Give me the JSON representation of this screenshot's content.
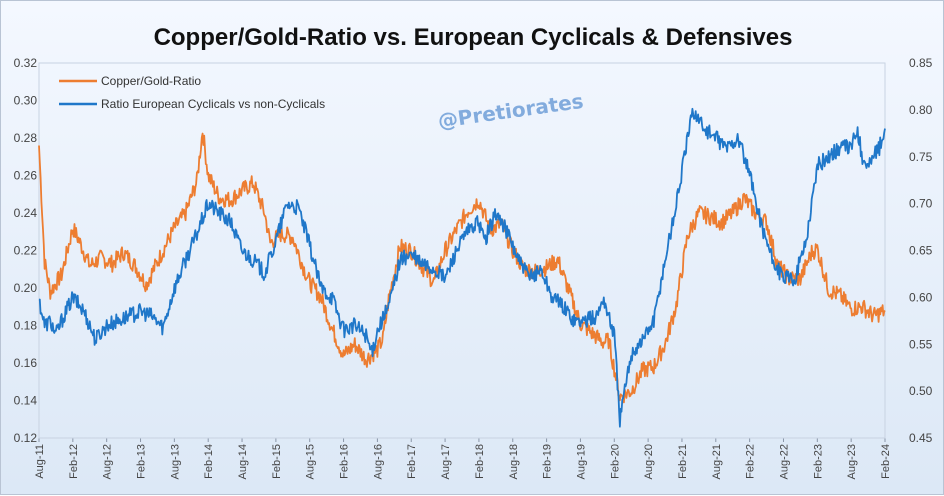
{
  "chart_data": {
    "type": "line",
    "title": "Copper/Gold-Ratio  vs. European Cyclicals & Defensives",
    "watermark": "@Pretiorates",
    "legend_position": "top-left",
    "grid": false,
    "x_tick_labels": [
      "Aug-11",
      "Feb-12",
      "Aug-12",
      "Feb-13",
      "Aug-13",
      "Feb-14",
      "Aug-14",
      "Feb-15",
      "Aug-15",
      "Feb-16",
      "Aug-16",
      "Feb-17",
      "Aug-17",
      "Feb-18",
      "Aug-18",
      "Feb-19",
      "Aug-19",
      "Feb-20",
      "Aug-20",
      "Feb-21",
      "Aug-21",
      "Feb-22",
      "Aug-22",
      "Feb-23",
      "Aug-23",
      "Feb-24"
    ],
    "x_range": [
      "2011-08",
      "2024-02"
    ],
    "y_left": {
      "ylim": [
        0.12,
        0.32
      ],
      "ticks": [
        "0.12",
        "0.14",
        "0.16",
        "0.18",
        "0.20",
        "0.22",
        "0.24",
        "0.26",
        "0.28",
        "0.30",
        "0.32"
      ]
    },
    "y_right": {
      "ylim": [
        0.45,
        0.85
      ],
      "ticks": [
        "0.45",
        "0.50",
        "0.55",
        "0.60",
        "0.65",
        "0.70",
        "0.75",
        "0.80",
        "0.85"
      ]
    },
    "series": [
      {
        "name": "Copper/Gold-Ratio",
        "axis": "left",
        "color": "#ed7d31",
        "points": [
          [
            "2011-08",
            0.276
          ],
          [
            "2011-09",
            0.214
          ],
          [
            "2011-10",
            0.198
          ],
          [
            "2011-12",
            0.207
          ],
          [
            "2012-02",
            0.232
          ],
          [
            "2012-03",
            0.226
          ],
          [
            "2012-05",
            0.212
          ],
          [
            "2012-07",
            0.216
          ],
          [
            "2012-09",
            0.213
          ],
          [
            "2012-11",
            0.219
          ],
          [
            "2013-01",
            0.212
          ],
          [
            "2013-03",
            0.202
          ],
          [
            "2013-05",
            0.214
          ],
          [
            "2013-07",
            0.226
          ],
          [
            "2013-08",
            0.232
          ],
          [
            "2013-10",
            0.24
          ],
          [
            "2013-12",
            0.257
          ],
          [
            "2014-01",
            0.284
          ],
          [
            "2014-02",
            0.26
          ],
          [
            "2014-04",
            0.248
          ],
          [
            "2014-06",
            0.247
          ],
          [
            "2014-08",
            0.252
          ],
          [
            "2014-10",
            0.256
          ],
          [
            "2014-12",
            0.24
          ],
          [
            "2015-01",
            0.224
          ],
          [
            "2015-03",
            0.229
          ],
          [
            "2015-05",
            0.227
          ],
          [
            "2015-07",
            0.21
          ],
          [
            "2015-08",
            0.203
          ],
          [
            "2015-10",
            0.195
          ],
          [
            "2015-12",
            0.178
          ],
          [
            "2016-02",
            0.164
          ],
          [
            "2016-04",
            0.17
          ],
          [
            "2016-06",
            0.162
          ],
          [
            "2016-08",
            0.167
          ],
          [
            "2016-09",
            0.173
          ],
          [
            "2016-10",
            0.194
          ],
          [
            "2016-12",
            0.222
          ],
          [
            "2017-02",
            0.22
          ],
          [
            "2017-04",
            0.211
          ],
          [
            "2017-06",
            0.203
          ],
          [
            "2017-08",
            0.22
          ],
          [
            "2017-10",
            0.231
          ],
          [
            "2017-12",
            0.241
          ],
          [
            "2018-02",
            0.247
          ],
          [
            "2018-04",
            0.231
          ],
          [
            "2018-06",
            0.234
          ],
          [
            "2018-08",
            0.22
          ],
          [
            "2018-10",
            0.21
          ],
          [
            "2018-12",
            0.209
          ],
          [
            "2019-02",
            0.211
          ],
          [
            "2019-04",
            0.215
          ],
          [
            "2019-06",
            0.198
          ],
          [
            "2019-08",
            0.181
          ],
          [
            "2019-10",
            0.176
          ],
          [
            "2019-12",
            0.171
          ],
          [
            "2020-01",
            0.172
          ],
          [
            "2020-03",
            0.142
          ],
          [
            "2020-05",
            0.145
          ],
          [
            "2020-07",
            0.156
          ],
          [
            "2020-09",
            0.158
          ],
          [
            "2020-11",
            0.17
          ],
          [
            "2021-01",
            0.191
          ],
          [
            "2021-03",
            0.228
          ],
          [
            "2021-05",
            0.24
          ],
          [
            "2021-07",
            0.238
          ],
          [
            "2021-09",
            0.235
          ],
          [
            "2021-11",
            0.24
          ],
          [
            "2022-01",
            0.248
          ],
          [
            "2022-03",
            0.24
          ],
          [
            "2022-05",
            0.235
          ],
          [
            "2022-07",
            0.212
          ],
          [
            "2022-09",
            0.205
          ],
          [
            "2022-11",
            0.205
          ],
          [
            "2023-01",
            0.219
          ],
          [
            "2023-02",
            0.221
          ],
          [
            "2023-04",
            0.199
          ],
          [
            "2023-06",
            0.196
          ],
          [
            "2023-08",
            0.189
          ],
          [
            "2023-10",
            0.19
          ],
          [
            "2023-12",
            0.185
          ],
          [
            "2024-02",
            0.188
          ]
        ]
      },
      {
        "name": "Ratio European Cyclicals vs non-Cyclicals",
        "axis": "right",
        "color": "#1f77c9",
        "points": [
          [
            "2011-08",
            0.598
          ],
          [
            "2011-09",
            0.57
          ],
          [
            "2011-10",
            0.575
          ],
          [
            "2011-11",
            0.56
          ],
          [
            "2011-12",
            0.575
          ],
          [
            "2012-02",
            0.6
          ],
          [
            "2012-04",
            0.585
          ],
          [
            "2012-06",
            0.555
          ],
          [
            "2012-08",
            0.57
          ],
          [
            "2012-10",
            0.575
          ],
          [
            "2012-12",
            0.58
          ],
          [
            "2013-02",
            0.585
          ],
          [
            "2013-04",
            0.58
          ],
          [
            "2013-06",
            0.568
          ],
          [
            "2013-08",
            0.61
          ],
          [
            "2013-10",
            0.64
          ],
          [
            "2013-12",
            0.668
          ],
          [
            "2014-02",
            0.7
          ],
          [
            "2014-04",
            0.69
          ],
          [
            "2014-06",
            0.68
          ],
          [
            "2014-08",
            0.65
          ],
          [
            "2014-10",
            0.64
          ],
          [
            "2014-12",
            0.625
          ],
          [
            "2015-02",
            0.66
          ],
          [
            "2015-04",
            0.7
          ],
          [
            "2015-06",
            0.695
          ],
          [
            "2015-08",
            0.655
          ],
          [
            "2015-10",
            0.61
          ],
          [
            "2015-12",
            0.6
          ],
          [
            "2016-02",
            0.565
          ],
          [
            "2016-04",
            0.57
          ],
          [
            "2016-06",
            0.56
          ],
          [
            "2016-07",
            0.54
          ],
          [
            "2016-08",
            0.565
          ],
          [
            "2016-10",
            0.59
          ],
          [
            "2016-12",
            0.64
          ],
          [
            "2017-02",
            0.645
          ],
          [
            "2017-04",
            0.635
          ],
          [
            "2017-06",
            0.63
          ],
          [
            "2017-08",
            0.62
          ],
          [
            "2017-10",
            0.65
          ],
          [
            "2017-12",
            0.67
          ],
          [
            "2018-02",
            0.68
          ],
          [
            "2018-03",
            0.66
          ],
          [
            "2018-05",
            0.69
          ],
          [
            "2018-07",
            0.67
          ],
          [
            "2018-09",
            0.64
          ],
          [
            "2018-11",
            0.62
          ],
          [
            "2019-01",
            0.63
          ],
          [
            "2019-03",
            0.6
          ],
          [
            "2019-05",
            0.59
          ],
          [
            "2019-07",
            0.575
          ],
          [
            "2019-09",
            0.575
          ],
          [
            "2019-11",
            0.58
          ],
          [
            "2019-12",
            0.6
          ],
          [
            "2020-02",
            0.56
          ],
          [
            "2020-03",
            0.47
          ],
          [
            "2020-05",
            0.54
          ],
          [
            "2020-07",
            0.555
          ],
          [
            "2020-09",
            0.575
          ],
          [
            "2020-11",
            0.64
          ],
          [
            "2021-01",
            0.7
          ],
          [
            "2021-03",
            0.77
          ],
          [
            "2021-04",
            0.8
          ],
          [
            "2021-06",
            0.78
          ],
          [
            "2021-08",
            0.77
          ],
          [
            "2021-10",
            0.76
          ],
          [
            "2021-12",
            0.77
          ],
          [
            "2022-02",
            0.73
          ],
          [
            "2022-04",
            0.68
          ],
          [
            "2022-06",
            0.64
          ],
          [
            "2022-08",
            0.62
          ],
          [
            "2022-10",
            0.62
          ],
          [
            "2022-12",
            0.66
          ],
          [
            "2023-02",
            0.74
          ],
          [
            "2023-04",
            0.75
          ],
          [
            "2023-06",
            0.76
          ],
          [
            "2023-08",
            0.76
          ],
          [
            "2023-09",
            0.78
          ],
          [
            "2023-10",
            0.75
          ],
          [
            "2023-11",
            0.74
          ],
          [
            "2024-01",
            0.76
          ],
          [
            "2024-02",
            0.78
          ]
        ]
      }
    ]
  }
}
